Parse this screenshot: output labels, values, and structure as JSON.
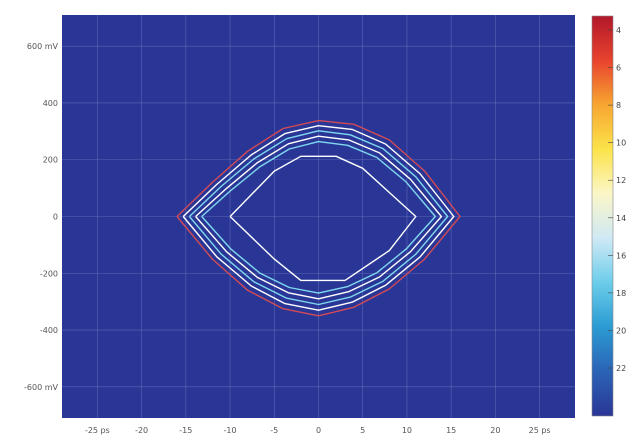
{
  "chart_data": {
    "type": "heatmap",
    "title": "",
    "xlabel": "",
    "ylabel": "",
    "xlim": [
      -29,
      29
    ],
    "ylim": [
      -710,
      710
    ],
    "grid": true,
    "background_color": "#2a3696",
    "x_ticks": [
      {
        "value": -25,
        "label": "-25 ps"
      },
      {
        "value": -20,
        "label": "-20"
      },
      {
        "value": -15,
        "label": "-15"
      },
      {
        "value": -10,
        "label": "-10"
      },
      {
        "value": -5,
        "label": "-5"
      },
      {
        "value": 0,
        "label": "0"
      },
      {
        "value": 5,
        "label": "5"
      },
      {
        "value": 10,
        "label": "10"
      },
      {
        "value": 15,
        "label": "15"
      },
      {
        "value": 20,
        "label": "20"
      },
      {
        "value": 25,
        "label": "25 ps"
      }
    ],
    "y_ticks": [
      {
        "value": 600,
        "label": "600 mV"
      },
      {
        "value": 400,
        "label": "400"
      },
      {
        "value": 200,
        "label": "200"
      },
      {
        "value": 0,
        "label": "0"
      },
      {
        "value": -200,
        "label": "-200"
      },
      {
        "value": -400,
        "label": "-400"
      },
      {
        "value": -600,
        "label": "-600 mV"
      }
    ],
    "colorbar": {
      "ticks": [
        "4",
        "6",
        "8",
        "10",
        "12",
        "14",
        "16",
        "18",
        "20",
        "22"
      ],
      "colors": [
        "#b2182b",
        "#e8432e",
        "#f7a631",
        "#fbe34a",
        "#fbf6c8",
        "#cfe9f5",
        "#6ccdea",
        "#2b9bd3",
        "#2b63b5",
        "#2a3696"
      ]
    },
    "contours": [
      {
        "name": "",
        "color": "#d14a57",
        "points": [
          [
            -16,
            0
          ],
          [
            -12,
            120
          ],
          [
            -8,
            230
          ],
          [
            -4,
            310
          ],
          [
            0,
            338
          ],
          [
            4,
            325
          ],
          [
            8,
            270
          ],
          [
            12,
            160
          ],
          [
            16,
            0
          ],
          [
            12,
            -150
          ],
          [
            8,
            -255
          ],
          [
            4,
            -320
          ],
          [
            0,
            -350
          ],
          [
            -4,
            -325
          ],
          [
            -8,
            -260
          ],
          [
            -12,
            -150
          ],
          [
            -16,
            0
          ]
        ]
      },
      {
        "name": "",
        "color": "#ffffff",
        "points": [
          [
            -15.3,
            0
          ],
          [
            -11.5,
            113
          ],
          [
            -7.6,
            217
          ],
          [
            -3.8,
            292
          ],
          [
            0,
            320
          ],
          [
            3.8,
            307
          ],
          [
            7.6,
            255
          ],
          [
            11.5,
            150
          ],
          [
            15.3,
            0
          ],
          [
            11.5,
            -142
          ],
          [
            7.6,
            -242
          ],
          [
            3.8,
            -302
          ],
          [
            0,
            -330
          ],
          [
            -3.8,
            -307
          ],
          [
            -7.6,
            -245
          ],
          [
            -11.5,
            -142
          ],
          [
            -15.3,
            0
          ]
        ]
      },
      {
        "name": "",
        "color": "#7fd8f0",
        "points": [
          [
            -14.6,
            0
          ],
          [
            -11,
            106
          ],
          [
            -7.3,
            203
          ],
          [
            -3.6,
            274
          ],
          [
            0,
            302
          ],
          [
            3.6,
            288
          ],
          [
            7.3,
            239
          ],
          [
            11,
            140
          ],
          [
            14.6,
            0
          ],
          [
            11,
            -133
          ],
          [
            7.3,
            -228
          ],
          [
            3.6,
            -284
          ],
          [
            0,
            -310
          ],
          [
            -3.6,
            -288
          ],
          [
            -7.3,
            -230
          ],
          [
            -11,
            -133
          ],
          [
            -14.6,
            0
          ]
        ]
      },
      {
        "name": "",
        "color": "#ffffff",
        "points": [
          [
            -13.9,
            0
          ],
          [
            -10.4,
            99
          ],
          [
            -6.9,
            190
          ],
          [
            -3.4,
            256
          ],
          [
            0,
            283
          ],
          [
            3.4,
            270
          ],
          [
            6.9,
            224
          ],
          [
            10.4,
            131
          ],
          [
            13.9,
            0
          ],
          [
            10.4,
            -124
          ],
          [
            6.9,
            -213
          ],
          [
            3.4,
            -265
          ],
          [
            0,
            -290
          ],
          [
            -3.4,
            -269
          ],
          [
            -6.9,
            -215
          ],
          [
            -10.4,
            -124
          ],
          [
            -13.9,
            0
          ]
        ]
      },
      {
        "name": "",
        "color": "#7fd8f0",
        "points": [
          [
            -13.2,
            0
          ],
          [
            -9.9,
            92
          ],
          [
            -6.6,
            176
          ],
          [
            -3.3,
            238
          ],
          [
            0,
            264
          ],
          [
            3.3,
            251
          ],
          [
            6.6,
            208
          ],
          [
            9.9,
            122
          ],
          [
            13.2,
            0
          ],
          [
            9.9,
            -115
          ],
          [
            6.6,
            -198
          ],
          [
            3.3,
            -247
          ],
          [
            0,
            -270
          ],
          [
            -3.3,
            -250
          ],
          [
            -6.6,
            -200
          ],
          [
            -9.9,
            -115
          ],
          [
            -13.2,
            0
          ]
        ]
      },
      {
        "name": "",
        "color": "#ffffff",
        "points": [
          [
            -10,
            0
          ],
          [
            -5,
            160
          ],
          [
            -2,
            212
          ],
          [
            2,
            212
          ],
          [
            5,
            170
          ],
          [
            11,
            0
          ],
          [
            8,
            -120
          ],
          [
            3,
            -225
          ],
          [
            -2,
            -225
          ],
          [
            -5,
            -150
          ],
          [
            -10,
            0
          ]
        ]
      }
    ]
  }
}
